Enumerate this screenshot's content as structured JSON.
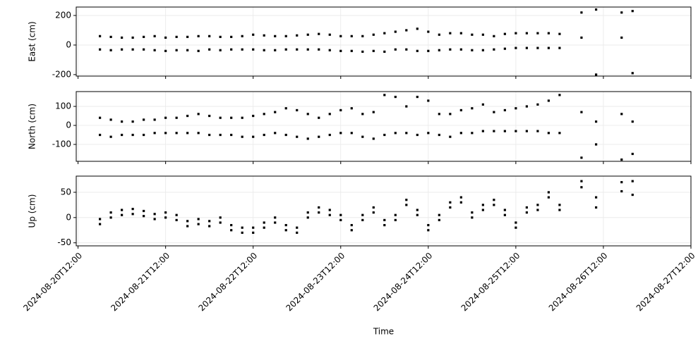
{
  "chart_data": [
    {
      "type": "scatter",
      "ylabel": "East (cm)",
      "ylim": [
        -210,
        257
      ],
      "yticks": [
        -200,
        0,
        200
      ],
      "grid": true,
      "x": [
        "2024-08-20T18:00",
        "2024-08-20T21:00",
        "2024-08-21T00:00",
        "2024-08-21T03:00",
        "2024-08-21T06:00",
        "2024-08-21T09:00",
        "2024-08-21T12:00",
        "2024-08-21T15:00",
        "2024-08-21T18:00",
        "2024-08-21T21:00",
        "2024-08-22T00:00",
        "2024-08-22T03:00",
        "2024-08-22T06:00",
        "2024-08-22T09:00",
        "2024-08-22T12:00",
        "2024-08-22T15:00",
        "2024-08-22T18:00",
        "2024-08-22T21:00",
        "2024-08-23T00:00",
        "2024-08-23T03:00",
        "2024-08-23T06:00",
        "2024-08-23T09:00",
        "2024-08-23T12:00",
        "2024-08-23T15:00",
        "2024-08-23T18:00",
        "2024-08-23T21:00",
        "2024-08-24T00:00",
        "2024-08-24T03:00",
        "2024-08-24T06:00",
        "2024-08-24T09:00",
        "2024-08-24T12:00",
        "2024-08-24T15:00",
        "2024-08-24T18:00",
        "2024-08-24T21:00",
        "2024-08-25T00:00",
        "2024-08-25T03:00",
        "2024-08-25T06:00",
        "2024-08-25T09:00",
        "2024-08-25T12:00",
        "2024-08-25T15:00",
        "2024-08-25T18:00",
        "2024-08-25T21:00",
        "2024-08-26T00:00",
        "2024-08-26T06:00",
        "2024-08-26T10:00",
        "2024-08-26T17:00",
        "2024-08-26T20:00"
      ],
      "series": [
        {
          "color": "#000000",
          "values": [
            60,
            55,
            50,
            50,
            55,
            60,
            50,
            55,
            55,
            60,
            60,
            55,
            55,
            60,
            70,
            65,
            60,
            60,
            65,
            70,
            75,
            70,
            60,
            60,
            60,
            70,
            80,
            90,
            100,
            110,
            90,
            70,
            80,
            80,
            70,
            70,
            60,
            75,
            80,
            80,
            80,
            80,
            75,
            220,
            240,
            220,
            230
          ]
        },
        {
          "color": "#000000",
          "values": [
            -30,
            -35,
            -30,
            -30,
            -30,
            -35,
            -40,
            -35,
            -35,
            -40,
            -30,
            -35,
            -30,
            -30,
            -30,
            -35,
            -35,
            -30,
            -30,
            -30,
            -30,
            -35,
            -40,
            -40,
            -45,
            -40,
            -45,
            -30,
            -30,
            -40,
            -40,
            -35,
            -30,
            -30,
            -35,
            -35,
            -30,
            -25,
            -20,
            -20,
            -20,
            -20,
            -20,
            50,
            -200,
            50,
            -190
          ]
        }
      ]
    },
    {
      "type": "scatter",
      "ylabel": "North (cm)",
      "ylim": [
        -189,
        178
      ],
      "yticks": [
        -100,
        0,
        100
      ],
      "grid": true,
      "x": [
        "2024-08-20T18:00",
        "2024-08-20T21:00",
        "2024-08-21T00:00",
        "2024-08-21T03:00",
        "2024-08-21T06:00",
        "2024-08-21T09:00",
        "2024-08-21T12:00",
        "2024-08-21T15:00",
        "2024-08-21T18:00",
        "2024-08-21T21:00",
        "2024-08-22T00:00",
        "2024-08-22T03:00",
        "2024-08-22T06:00",
        "2024-08-22T09:00",
        "2024-08-22T12:00",
        "2024-08-22T15:00",
        "2024-08-22T18:00",
        "2024-08-22T21:00",
        "2024-08-23T00:00",
        "2024-08-23T03:00",
        "2024-08-23T06:00",
        "2024-08-23T09:00",
        "2024-08-23T12:00",
        "2024-08-23T15:00",
        "2024-08-23T18:00",
        "2024-08-23T21:00",
        "2024-08-24T00:00",
        "2024-08-24T03:00",
        "2024-08-24T06:00",
        "2024-08-24T09:00",
        "2024-08-24T12:00",
        "2024-08-24T15:00",
        "2024-08-24T18:00",
        "2024-08-24T21:00",
        "2024-08-25T00:00",
        "2024-08-25T03:00",
        "2024-08-25T06:00",
        "2024-08-25T09:00",
        "2024-08-25T12:00",
        "2024-08-25T15:00",
        "2024-08-25T18:00",
        "2024-08-25T21:00",
        "2024-08-26T00:00",
        "2024-08-26T06:00",
        "2024-08-26T10:00",
        "2024-08-26T17:00",
        "2024-08-26T20:00"
      ],
      "series": [
        {
          "color": "#000000",
          "values": [
            40,
            30,
            20,
            20,
            30,
            30,
            40,
            40,
            50,
            60,
            50,
            40,
            40,
            40,
            50,
            60,
            70,
            90,
            80,
            60,
            40,
            60,
            80,
            90,
            60,
            70,
            160,
            150,
            100,
            150,
            130,
            60,
            60,
            80,
            90,
            110,
            70,
            80,
            90,
            100,
            110,
            130,
            160,
            70,
            20,
            60,
            20
          ]
        },
        {
          "color": "#000000",
          "values": [
            -50,
            -60,
            -50,
            -50,
            -50,
            -40,
            -40,
            -40,
            -40,
            -40,
            -50,
            -50,
            -50,
            -60,
            -60,
            -50,
            -40,
            -50,
            -60,
            -70,
            -60,
            -50,
            -40,
            -40,
            -60,
            -70,
            -50,
            -40,
            -40,
            -50,
            -40,
            -50,
            -60,
            -40,
            -40,
            -30,
            -30,
            -30,
            -30,
            -30,
            -30,
            -40,
            -40,
            -170,
            -100,
            -180,
            -150
          ]
        }
      ]
    },
    {
      "type": "scatter",
      "ylabel": "Up (cm)",
      "xlabel": "Time",
      "ylim": [
        -56,
        82
      ],
      "yticks": [
        -50,
        0,
        50
      ],
      "grid": true,
      "xlim": [
        "2024-08-20T11:30",
        "2024-08-27T12:00"
      ],
      "xticks": [
        "2024-08-20T12:00",
        "2024-08-21T12:00",
        "2024-08-22T12:00",
        "2024-08-23T12:00",
        "2024-08-24T12:00",
        "2024-08-25T12:00",
        "2024-08-26T12:00",
        "2024-08-27T12:00"
      ],
      "x": [
        "2024-08-20T18:00",
        "2024-08-20T21:00",
        "2024-08-21T00:00",
        "2024-08-21T03:00",
        "2024-08-21T06:00",
        "2024-08-21T09:00",
        "2024-08-21T12:00",
        "2024-08-21T15:00",
        "2024-08-21T18:00",
        "2024-08-21T21:00",
        "2024-08-22T00:00",
        "2024-08-22T03:00",
        "2024-08-22T06:00",
        "2024-08-22T09:00",
        "2024-08-22T12:00",
        "2024-08-22T15:00",
        "2024-08-22T18:00",
        "2024-08-22T21:00",
        "2024-08-23T00:00",
        "2024-08-23T03:00",
        "2024-08-23T06:00",
        "2024-08-23T09:00",
        "2024-08-23T12:00",
        "2024-08-23T15:00",
        "2024-08-23T18:00",
        "2024-08-23T21:00",
        "2024-08-24T00:00",
        "2024-08-24T03:00",
        "2024-08-24T06:00",
        "2024-08-24T09:00",
        "2024-08-24T12:00",
        "2024-08-24T15:00",
        "2024-08-24T18:00",
        "2024-08-24T21:00",
        "2024-08-25T00:00",
        "2024-08-25T03:00",
        "2024-08-25T06:00",
        "2024-08-25T09:00",
        "2024-08-25T12:00",
        "2024-08-25T15:00",
        "2024-08-25T18:00",
        "2024-08-25T21:00",
        "2024-08-26T00:00",
        "2024-08-26T06:00",
        "2024-08-26T10:00",
        "2024-08-26T17:00",
        "2024-08-26T20:00"
      ],
      "series": [
        {
          "color": "#000000",
          "values": [
            -3,
            10,
            15,
            17,
            13,
            7,
            10,
            5,
            -7,
            -3,
            -7,
            0,
            -15,
            -20,
            -20,
            -10,
            0,
            -15,
            -20,
            10,
            20,
            15,
            5,
            -15,
            5,
            20,
            -5,
            5,
            35,
            15,
            -15,
            5,
            30,
            40,
            10,
            25,
            35,
            15,
            -10,
            20,
            25,
            50,
            25,
            72,
            40,
            70,
            72
          ]
        },
        {
          "color": "#000000",
          "values": [
            -13,
            0,
            5,
            7,
            3,
            -3,
            0,
            -5,
            -17,
            -13,
            -17,
            -10,
            -25,
            -30,
            -30,
            -20,
            -10,
            -25,
            -30,
            0,
            10,
            5,
            -5,
            -25,
            -5,
            10,
            -15,
            -5,
            25,
            5,
            -25,
            -5,
            20,
            30,
            0,
            15,
            25,
            5,
            -20,
            10,
            15,
            40,
            15,
            60,
            20,
            52,
            45
          ]
        }
      ]
    }
  ]
}
